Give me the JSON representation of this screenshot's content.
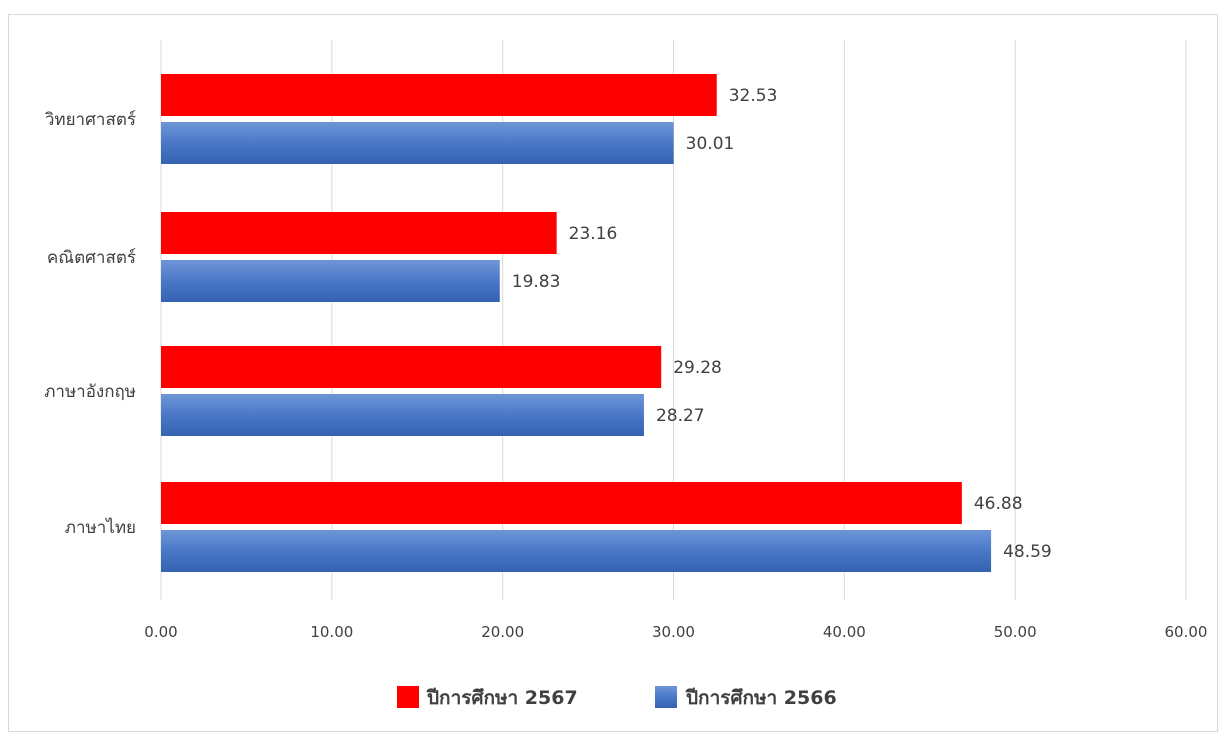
{
  "chart_data": {
    "type": "bar",
    "orientation": "horizontal",
    "title": "",
    "xlabel": "",
    "ylabel": "",
    "categories": [
      "วิทยาศาสตร์",
      "คณิตศาสตร์",
      "ภาษาอังกฤษ",
      "ภาษาไทย"
    ],
    "series": [
      {
        "name": "ปีการศึกษา 2567",
        "color": "#ff0000",
        "values": [
          32.53,
          23.16,
          29.28,
          46.88
        ],
        "labels": [
          "32.53",
          "23.16",
          "29.28",
          "46.88"
        ]
      },
      {
        "name": "ปีการศึกษา 2566",
        "color": "#4472c4",
        "values": [
          30.01,
          19.83,
          28.27,
          48.59
        ],
        "labels": [
          "30.01",
          "19.83",
          "28.27",
          "48.59"
        ]
      }
    ],
    "xlim": [
      0,
      60
    ],
    "xticks": [
      "0.00",
      "10.00",
      "20.00",
      "30.00",
      "40.00",
      "50.00",
      "60.00"
    ],
    "grid": true,
    "legend_position": "bottom"
  }
}
